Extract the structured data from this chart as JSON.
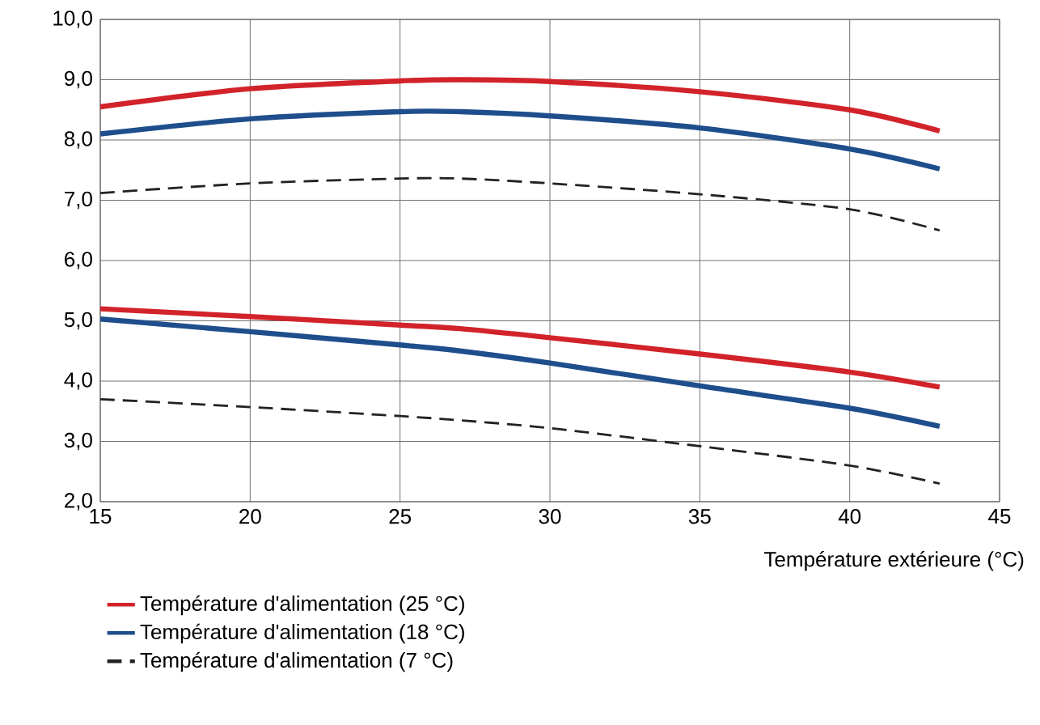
{
  "chart_data": {
    "type": "line",
    "xlabel": "Température extérieure (°C)",
    "xlim": [
      15,
      45
    ],
    "xticks": [
      15,
      20,
      25,
      30,
      35,
      40,
      45
    ],
    "ylim": [
      2,
      10
    ],
    "yticks": [
      {
        "value": 2,
        "label": "2,0"
      },
      {
        "value": 3,
        "label": "3,0"
      },
      {
        "value": 4,
        "label": "4,0"
      },
      {
        "value": 5,
        "label": "5,0"
      },
      {
        "value": 6,
        "label": "6,0"
      },
      {
        "value": 7,
        "label": "7,0"
      },
      {
        "value": 8,
        "label": "8,0"
      },
      {
        "value": 9,
        "label": "9,0"
      },
      {
        "value": 10,
        "label": "10,0"
      }
    ],
    "grid": true,
    "legend": "bottom",
    "marker": "none",
    "x": [
      15,
      20,
      25,
      27,
      30,
      35,
      40,
      43
    ],
    "series": [
      {
        "name": "Température d'alimentation (25 °C)",
        "color": "#d2232a",
        "line_style": "solid",
        "values": [
          8.55,
          8.85,
          8.98,
          9.0,
          8.97,
          8.8,
          8.5,
          8.15
        ]
      },
      {
        "name": "Température d'alimentation (18 °C)",
        "color": "#1f4e8c",
        "line_style": "solid",
        "values": [
          8.1,
          8.35,
          8.47,
          8.47,
          8.4,
          8.2,
          7.85,
          7.52
        ]
      },
      {
        "name": "Température d'alimentation (7 °C)",
        "color": "#222222",
        "line_style": "dashed",
        "values": [
          7.12,
          7.28,
          7.36,
          7.36,
          7.28,
          7.1,
          6.85,
          6.5
        ]
      },
      {
        "color": "#d2232a",
        "line_style": "solid",
        "values": [
          5.2,
          5.07,
          4.93,
          4.87,
          4.72,
          4.45,
          4.15,
          3.9
        ]
      },
      {
        "color": "#1f4e8c",
        "line_style": "solid",
        "values": [
          5.03,
          4.82,
          4.6,
          4.5,
          4.3,
          3.92,
          3.55,
          3.25
        ]
      },
      {
        "color": "#222222",
        "line_style": "dashed",
        "values": [
          3.7,
          3.57,
          3.42,
          3.35,
          3.22,
          2.92,
          2.6,
          2.3
        ]
      }
    ]
  }
}
